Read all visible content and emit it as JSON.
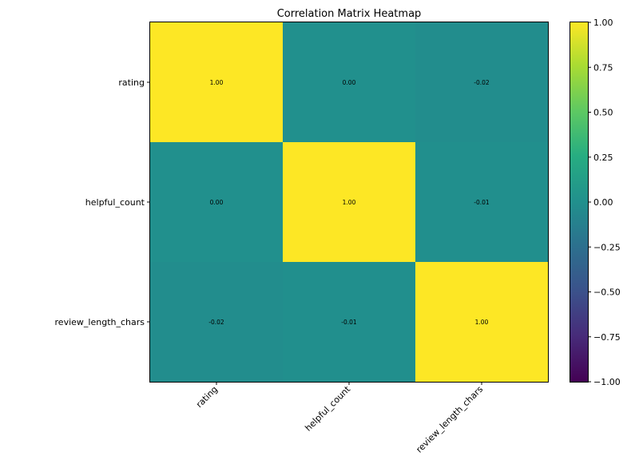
{
  "chart_data": {
    "type": "heatmap",
    "title": "Correlation Matrix Heatmap",
    "row_labels": [
      "rating",
      "helpful_count",
      "review_length_chars"
    ],
    "col_labels": [
      "rating",
      "helpful_count",
      "review_length_chars"
    ],
    "values": [
      [
        1.0,
        0.0,
        -0.02
      ],
      [
        0.0,
        1.0,
        -0.01
      ],
      [
        -0.02,
        -0.01,
        1.0
      ]
    ],
    "cell_text": [
      [
        "1.00",
        "0.00",
        "-0.02"
      ],
      [
        "0.00",
        "1.00",
        "-0.01"
      ],
      [
        "-0.02",
        "-0.01",
        "1.00"
      ]
    ],
    "colormap": "viridis",
    "vmin": -1.0,
    "vmax": 1.0,
    "colorbar_ticks": [
      1.0,
      0.75,
      0.5,
      0.25,
      0.0,
      -0.25,
      -0.5,
      -0.75,
      -1.0
    ],
    "colorbar_tick_labels": [
      "1.00",
      "0.75",
      "0.50",
      "0.25",
      "0.00",
      "−0.25",
      "−0.50",
      "−0.75",
      "−1.00"
    ],
    "xlabel": "",
    "ylabel": ""
  }
}
